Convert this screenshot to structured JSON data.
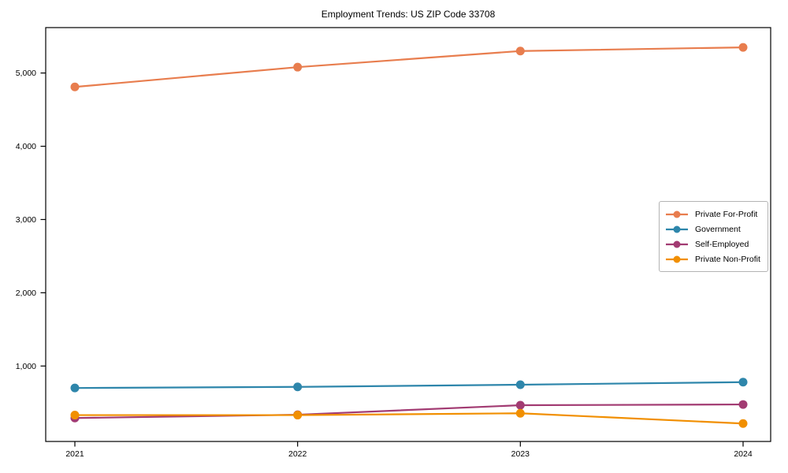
{
  "chart_data": {
    "type": "line",
    "title": "Employment Trends: US ZIP Code 33708",
    "x": [
      2021,
      2022,
      2023,
      2024
    ],
    "x_tick_labels": [
      "2021",
      "2022",
      "2023",
      "2024"
    ],
    "y_ticks": [
      1000,
      2000,
      3000,
      4000,
      5000
    ],
    "y_tick_labels": [
      "1,000",
      "2,000",
      "3,000",
      "4,000",
      "5,000"
    ],
    "ylim": [
      0,
      5650
    ],
    "grid": false,
    "legend_position": "center-right",
    "series": [
      {
        "name": "Private For-Profit",
        "color": "#E87D4E",
        "values": [
          4810,
          5080,
          5300,
          5350
        ]
      },
      {
        "name": "Government",
        "color": "#2E86AB",
        "values": [
          700,
          715,
          745,
          780
        ]
      },
      {
        "name": "Self-Employed",
        "color": "#A23B72",
        "values": [
          290,
          335,
          465,
          475
        ]
      },
      {
        "name": "Private Non-Profit",
        "color": "#F18F01",
        "values": [
          330,
          330,
          355,
          215
        ]
      }
    ]
  }
}
